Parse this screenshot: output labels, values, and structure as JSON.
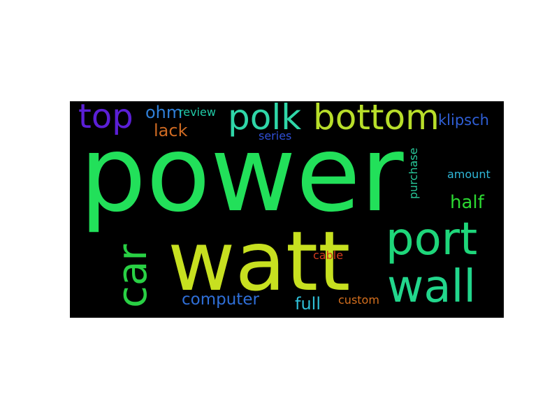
{
  "background": "#000000",
  "page_background": "#ffffff",
  "words": [
    {
      "text": "power",
      "color": "#22e05a"
    },
    {
      "text": "watt",
      "color": "#c7e020"
    },
    {
      "text": "polk",
      "color": "#2fd6a8"
    },
    {
      "text": "bottom",
      "color": "#b8de2a"
    },
    {
      "text": "top",
      "color": "#5b1fd6"
    },
    {
      "text": "port",
      "color": "#1ed67a"
    },
    {
      "text": "wall",
      "color": "#22d68c"
    },
    {
      "text": "car",
      "color": "#29d044"
    },
    {
      "text": "ohm",
      "color": "#2f7fd8"
    },
    {
      "text": "review",
      "color": "#20c9a6"
    },
    {
      "text": "lack",
      "color": "#cf6a22"
    },
    {
      "text": "series",
      "color": "#2f4fd6"
    },
    {
      "text": "klipsch",
      "color": "#2f5fd6"
    },
    {
      "text": "purchase",
      "color": "#28c99a"
    },
    {
      "text": "amount",
      "color": "#2fb7d8"
    },
    {
      "text": "half",
      "color": "#2cd832"
    },
    {
      "text": "cable",
      "color": "#d23a1e"
    },
    {
      "text": "computer",
      "color": "#2f6fd8"
    },
    {
      "text": "full",
      "color": "#2fbfd8"
    },
    {
      "text": "custom",
      "color": "#d6701e"
    }
  ]
}
